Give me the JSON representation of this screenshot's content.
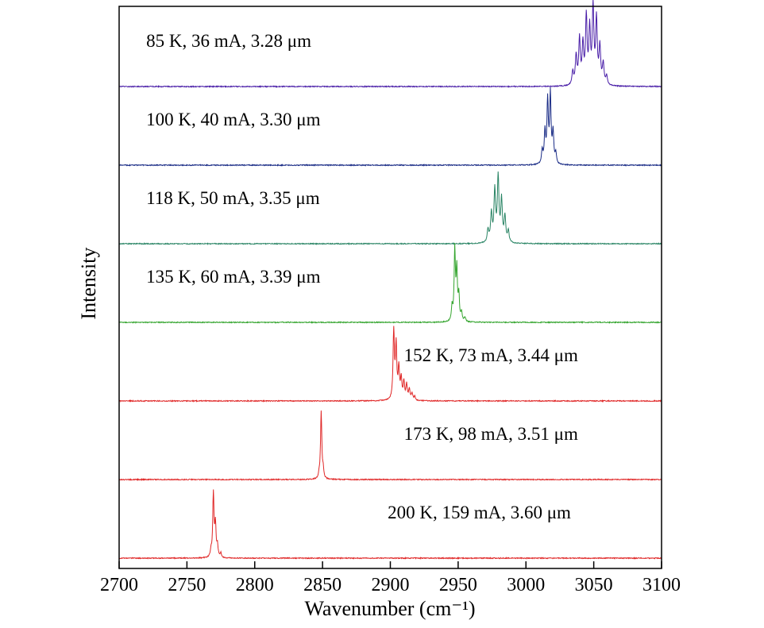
{
  "figure": {
    "background": "#ffffff",
    "frame_color": "#000000"
  },
  "chart_data": {
    "type": "line",
    "title": "",
    "xlabel": "Wavenumber (cm⁻¹)",
    "ylabel": "Intensity",
    "xlim": [
      2700,
      3100
    ],
    "x_ticks": [
      2700,
      2750,
      2800,
      2850,
      2900,
      2950,
      3000,
      3050,
      3100
    ],
    "grid": false,
    "legend": "none",
    "note": "Seven laser emission spectra stacked with vertical offsets; each trace is a multimode peak cluster on a flat noisy baseline. Modes listed as [wavenumber_cm-1, relative_height, half_width_cm-1].",
    "series": [
      {
        "label": "85 K, 36 mA, 3.28 μm",
        "color": "#4a1fa8",
        "label_side": "left",
        "label_x_frac": 0.05,
        "rel_amp": 1.0,
        "peak_cluster_range": [
          3033,
          3062
        ],
        "modes": [
          [
            3034.5,
            0.18,
            0.7
          ],
          [
            3037,
            0.38,
            0.7
          ],
          [
            3039.5,
            0.6,
            0.7
          ],
          [
            3042,
            0.52,
            0.7
          ],
          [
            3044.5,
            0.88,
            0.7
          ],
          [
            3047,
            0.72,
            0.7
          ],
          [
            3049.5,
            1.0,
            0.7
          ],
          [
            3052,
            0.85,
            0.7
          ],
          [
            3054.5,
            0.5,
            0.7
          ],
          [
            3057,
            0.28,
            0.7
          ],
          [
            3059.5,
            0.12,
            0.7
          ]
        ]
      },
      {
        "label": "100 K, 40 mA, 3.30 μm",
        "color": "#1a2c86",
        "label_side": "left",
        "label_x_frac": 0.05,
        "rel_amp": 0.92,
        "peak_cluster_range": [
          3011,
          3023
        ],
        "modes": [
          [
            3012,
            0.2,
            0.6
          ],
          [
            3014,
            0.45,
            0.6
          ],
          [
            3016,
            0.9,
            0.6
          ],
          [
            3018,
            1.0,
            0.6
          ],
          [
            3020,
            0.45,
            0.6
          ],
          [
            3022,
            0.15,
            0.6
          ]
        ]
      },
      {
        "label": "118 K, 50 mA, 3.35 μm",
        "color": "#2a8565",
        "label_side": "left",
        "label_x_frac": 0.05,
        "rel_amp": 0.85,
        "peak_cluster_range": [
          2971,
          2988
        ],
        "modes": [
          [
            2972,
            0.2,
            0.7
          ],
          [
            2974.5,
            0.45,
            0.7
          ],
          [
            2977,
            0.8,
            0.7
          ],
          [
            2979.5,
            1.0,
            0.7
          ],
          [
            2982,
            0.65,
            0.7
          ],
          [
            2984.5,
            0.4,
            0.7
          ],
          [
            2987,
            0.18,
            0.7
          ]
        ]
      },
      {
        "label": "135 K, 60 mA, 3.39 μm",
        "color": "#35a52f",
        "label_side": "left",
        "label_x_frac": 0.05,
        "rel_amp": 0.95,
        "peak_cluster_range": [
          2945,
          2956
        ],
        "modes": [
          [
            2945.5,
            0.2,
            0.55
          ],
          [
            2947.5,
            1.0,
            0.55
          ],
          [
            2949,
            0.7,
            0.55
          ],
          [
            2950.5,
            0.35,
            0.55
          ],
          [
            2952.5,
            0.12,
            0.55
          ],
          [
            2955,
            0.06,
            0.6
          ]
        ]
      },
      {
        "label": "152 K, 73 mA, 3.44 μm",
        "color": "#e02727",
        "label_side": "right",
        "label_x_frac": 0.525,
        "rel_amp": 0.9,
        "peak_cluster_range": [
          2901,
          2919
        ],
        "modes": [
          [
            2902.5,
            1.0,
            0.6
          ],
          [
            2904.25,
            0.78,
            0.6
          ],
          [
            2906.25,
            0.45,
            0.6
          ],
          [
            2908,
            0.3,
            0.6
          ],
          [
            2910,
            0.26,
            0.6
          ],
          [
            2912,
            0.22,
            0.6
          ],
          [
            2914,
            0.16,
            0.6
          ],
          [
            2916,
            0.1,
            0.6
          ],
          [
            2918,
            0.06,
            0.6
          ]
        ]
      },
      {
        "label": "173 K, 98 mA, 3.51 μm",
        "color": "#e02727",
        "label_side": "right",
        "label_x_frac": 0.525,
        "rel_amp": 0.9,
        "peak_cluster_range": [
          2847,
          2851
        ],
        "modes": [
          [
            2849,
            1.0,
            0.55
          ],
          [
            2850.5,
            0.12,
            0.55
          ],
          [
            2847.5,
            0.06,
            0.55
          ]
        ]
      },
      {
        "label": "200 K, 159 mA, 3.60 μm",
        "color": "#e02727",
        "label_side": "right",
        "label_x_frac": 0.495,
        "rel_amp": 0.85,
        "peak_cluster_range": [
          2767,
          2776
        ],
        "modes": [
          [
            2769.5,
            1.0,
            0.55
          ],
          [
            2771,
            0.5,
            0.55
          ],
          [
            2772.5,
            0.18,
            0.55
          ],
          [
            2775,
            0.07,
            0.55
          ],
          [
            2767.75,
            0.1,
            0.55
          ]
        ]
      }
    ]
  }
}
